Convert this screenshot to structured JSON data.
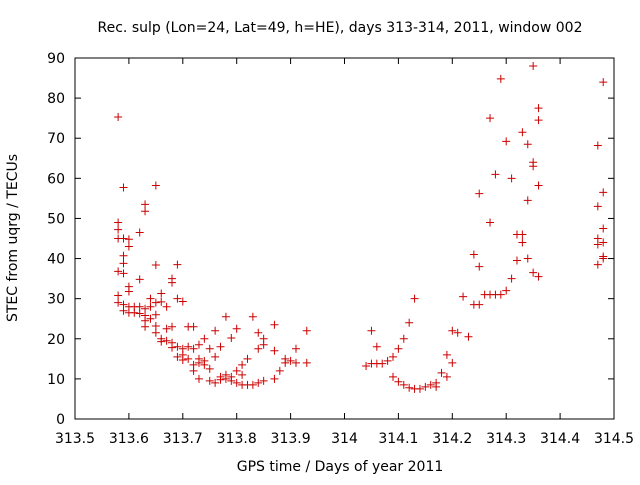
{
  "chart_data": {
    "type": "scatter",
    "title": "Rec. sulp (Lon=24, Lat=49, h=HE), days 313-314, 2011, window 002",
    "xlabel": "GPS time / Days of year 2011",
    "ylabel": "STEC from uqrg / TECUs",
    "xlim": [
      313.5,
      314.5
    ],
    "ylim": [
      0,
      90
    ],
    "xticks": [
      313.5,
      313.6,
      313.7,
      313.8,
      313.9,
      314.0,
      314.1,
      314.2,
      314.3,
      314.4,
      314.5
    ],
    "xtick_labels": [
      "313.5",
      "313.6",
      "313.7",
      "313.8",
      "313.9",
      "314",
      "314.1",
      "314.2",
      "314.3",
      "314.4",
      "314.5"
    ],
    "yticks": [
      0,
      10,
      20,
      30,
      40,
      50,
      60,
      70,
      80,
      90
    ],
    "ytick_labels": [
      "0",
      "10",
      "20",
      "30",
      "40",
      "50",
      "60",
      "70",
      "80",
      "90"
    ],
    "grid": false,
    "marker": "+",
    "color": "#cc0000",
    "series": [
      {
        "points": [
          [
            313.58,
            75.3
          ],
          [
            313.58,
            49.0
          ],
          [
            313.58,
            47.2
          ],
          [
            313.58,
            45.0
          ],
          [
            313.58,
            36.8
          ],
          [
            313.58,
            30.8
          ],
          [
            313.58,
            29.0
          ],
          [
            313.59,
            57.7
          ],
          [
            313.59,
            45.0
          ],
          [
            313.59,
            40.7
          ],
          [
            313.59,
            38.8
          ],
          [
            313.59,
            36.3
          ],
          [
            313.59,
            28.5
          ],
          [
            313.59,
            27.0
          ],
          [
            313.6,
            44.8
          ],
          [
            313.6,
            43.0
          ],
          [
            313.6,
            33.0
          ],
          [
            313.6,
            31.8
          ],
          [
            313.6,
            28.0
          ],
          [
            313.6,
            26.5
          ],
          [
            313.61,
            28.0
          ],
          [
            313.61,
            26.5
          ],
          [
            313.62,
            46.5
          ],
          [
            313.62,
            34.8
          ],
          [
            313.62,
            28.0
          ],
          [
            313.62,
            26.3
          ],
          [
            313.63,
            53.5
          ],
          [
            313.63,
            51.8
          ],
          [
            313.63,
            27.5
          ],
          [
            313.63,
            25.8
          ],
          [
            313.63,
            24.5
          ],
          [
            313.63,
            23.0
          ],
          [
            313.64,
            30.0
          ],
          [
            313.64,
            28.0
          ],
          [
            313.64,
            25.0
          ],
          [
            313.65,
            58.2
          ],
          [
            313.65,
            38.4
          ],
          [
            313.65,
            29.0
          ],
          [
            313.65,
            26.0
          ],
          [
            313.65,
            23.2
          ],
          [
            313.65,
            21.5
          ],
          [
            313.66,
            31.3
          ],
          [
            313.66,
            29.2
          ],
          [
            313.66,
            20.0
          ],
          [
            313.66,
            19.3
          ],
          [
            313.67,
            28.0
          ],
          [
            313.67,
            22.5
          ],
          [
            313.67,
            19.5
          ],
          [
            313.68,
            35.0
          ],
          [
            313.68,
            34.0
          ],
          [
            313.68,
            23.0
          ],
          [
            313.68,
            19.0
          ],
          [
            313.68,
            17.8
          ],
          [
            313.69,
            38.5
          ],
          [
            313.69,
            30.0
          ],
          [
            313.69,
            18.0
          ],
          [
            313.69,
            15.5
          ],
          [
            313.7,
            29.3
          ],
          [
            313.7,
            17.5
          ],
          [
            313.7,
            16.0
          ],
          [
            313.7,
            14.7
          ],
          [
            313.71,
            23.0
          ],
          [
            313.71,
            18.0
          ],
          [
            313.71,
            15.0
          ],
          [
            313.72,
            23.0
          ],
          [
            313.72,
            17.5
          ],
          [
            313.72,
            13.5
          ],
          [
            313.72,
            12.0
          ],
          [
            313.73,
            18.5
          ],
          [
            313.73,
            15.0
          ],
          [
            313.73,
            14.0
          ],
          [
            313.73,
            10.0
          ],
          [
            313.74,
            20.0
          ],
          [
            313.74,
            14.5
          ],
          [
            313.74,
            13.5
          ],
          [
            313.75,
            17.5
          ],
          [
            313.75,
            12.5
          ],
          [
            313.75,
            9.5
          ],
          [
            313.76,
            22.0
          ],
          [
            313.76,
            15.5
          ],
          [
            313.76,
            9.0
          ],
          [
            313.77,
            18.0
          ],
          [
            313.77,
            10.5
          ],
          [
            313.77,
            9.8
          ],
          [
            313.78,
            25.5
          ],
          [
            313.78,
            11.0
          ],
          [
            313.78,
            10.0
          ],
          [
            313.79,
            20.2
          ],
          [
            313.79,
            10.5
          ],
          [
            313.79,
            9.5
          ],
          [
            313.8,
            22.5
          ],
          [
            313.8,
            12.0
          ],
          [
            313.8,
            9.0
          ],
          [
            313.81,
            13.5
          ],
          [
            313.81,
            11.0
          ],
          [
            313.81,
            8.5
          ],
          [
            313.82,
            15.0
          ],
          [
            313.82,
            8.5
          ],
          [
            313.83,
            25.5
          ],
          [
            313.83,
            8.5
          ],
          [
            313.84,
            21.5
          ],
          [
            313.84,
            17.5
          ],
          [
            313.84,
            9.0
          ],
          [
            313.85,
            20.0
          ],
          [
            313.85,
            18.5
          ],
          [
            313.85,
            9.5
          ],
          [
            313.87,
            23.5
          ],
          [
            313.87,
            17.0
          ],
          [
            313.87,
            10.0
          ],
          [
            313.88,
            12.0
          ],
          [
            313.89,
            15.0
          ],
          [
            313.89,
            14.0
          ],
          [
            313.9,
            14.5
          ],
          [
            313.91,
            17.5
          ],
          [
            313.91,
            14.0
          ],
          [
            313.93,
            22.0
          ],
          [
            313.93,
            14.0
          ],
          [
            314.04,
            13.2
          ],
          [
            314.05,
            22.0
          ],
          [
            314.05,
            13.8
          ],
          [
            314.06,
            18.0
          ],
          [
            314.06,
            13.8
          ],
          [
            314.07,
            13.8
          ],
          [
            314.08,
            14.5
          ],
          [
            314.09,
            15.5
          ],
          [
            314.09,
            10.5
          ],
          [
            314.1,
            17.5
          ],
          [
            314.1,
            9.3
          ],
          [
            314.11,
            20.0
          ],
          [
            314.11,
            8.5
          ],
          [
            314.12,
            24.0
          ],
          [
            314.12,
            7.8
          ],
          [
            314.13,
            30.0
          ],
          [
            314.13,
            7.5
          ],
          [
            314.14,
            7.5
          ],
          [
            314.15,
            8.0
          ],
          [
            314.16,
            8.5
          ],
          [
            314.17,
            9.0
          ],
          [
            314.17,
            8.0
          ],
          [
            314.18,
            11.5
          ],
          [
            314.19,
            16.0
          ],
          [
            314.19,
            10.5
          ],
          [
            314.2,
            14.0
          ],
          [
            314.2,
            22.0
          ],
          [
            314.21,
            21.5
          ],
          [
            314.22,
            30.5
          ],
          [
            314.23,
            20.5
          ],
          [
            314.24,
            41.0
          ],
          [
            314.24,
            28.5
          ],
          [
            314.25,
            56.2
          ],
          [
            314.25,
            38.0
          ],
          [
            314.25,
            28.5
          ],
          [
            314.26,
            31.0
          ],
          [
            314.27,
            75.0
          ],
          [
            314.27,
            49.0
          ],
          [
            314.27,
            31.0
          ],
          [
            314.28,
            61.0
          ],
          [
            314.28,
            31.0
          ],
          [
            314.29,
            84.8
          ],
          [
            314.29,
            31.0
          ],
          [
            314.3,
            69.2
          ],
          [
            314.3,
            32.0
          ],
          [
            314.31,
            60.0
          ],
          [
            314.31,
            35.0
          ],
          [
            314.32,
            46.0
          ],
          [
            314.32,
            39.5
          ],
          [
            314.33,
            71.5
          ],
          [
            314.33,
            46.0
          ],
          [
            314.33,
            44.0
          ],
          [
            314.34,
            68.5
          ],
          [
            314.34,
            54.5
          ],
          [
            314.34,
            40.0
          ],
          [
            314.35,
            88.0
          ],
          [
            314.35,
            64.0
          ],
          [
            314.35,
            63.0
          ],
          [
            314.35,
            36.5
          ],
          [
            314.36,
            77.5
          ],
          [
            314.36,
            74.5
          ],
          [
            314.36,
            58.2
          ],
          [
            314.36,
            35.5
          ],
          [
            314.47,
            68.2
          ],
          [
            314.47,
            53.0
          ],
          [
            314.47,
            45.0
          ],
          [
            314.47,
            43.5
          ],
          [
            314.47,
            38.5
          ],
          [
            314.48,
            84.0
          ],
          [
            314.48,
            56.5
          ],
          [
            314.48,
            47.5
          ],
          [
            314.48,
            44.0
          ],
          [
            314.48,
            40.5
          ],
          [
            314.48,
            40.0
          ]
        ]
      }
    ]
  }
}
